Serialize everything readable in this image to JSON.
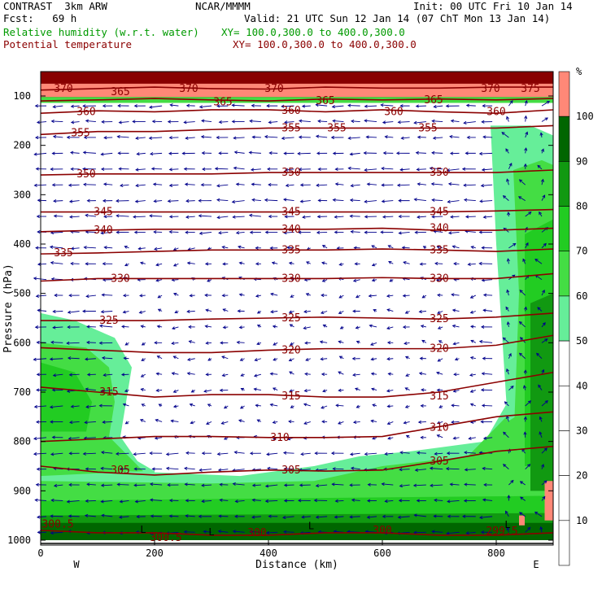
{
  "header": {
    "model": "CONTRAST  3km ARW",
    "center": "NCAR/MMMM",
    "init": "Init: 00 UTC Fri 10 Jan 14",
    "fcst": "Fcst:   69 h",
    "valid": "Valid: 21 UTC Sun 12 Jan 14 (07 ChT Mon 13 Jan 14)",
    "field1": "Relative humidity (w.r.t. water)",
    "field1_xy": "XY= 100.0,300.0 to 400.0,300.0",
    "field2": "Potential temperature",
    "field2_xy": "XY= 100.0,300.0 to 400.0,300.0"
  },
  "colors": {
    "theta_contour": "#8b0000",
    "wind_vector": "#00008b",
    "rh_shades": [
      "#ffffff",
      "#66ee99",
      "#44dd44",
      "#22cc22",
      "#119911",
      "#006600",
      "#ff8877",
      "#880000"
    ]
  },
  "chart_data": {
    "type": "contour",
    "xlabel": "Distance (km)",
    "ylabel": "Pressure (hPa)",
    "xlim": [
      0,
      900
    ],
    "ylim": [
      1000,
      50
    ],
    "x_ticks": [
      0,
      200,
      400,
      600,
      800
    ],
    "y_ticks": [
      100,
      200,
      300,
      400,
      500,
      600,
      700,
      800,
      900,
      1000
    ],
    "x_end_labels": {
      "left": "W",
      "right": "E"
    },
    "colorbar": {
      "unit": "%",
      "levels": [
        10,
        20,
        30,
        40,
        50,
        60,
        70,
        80,
        90,
        100
      ],
      "colors": [
        "#ffffff",
        "#ffffff",
        "#ffffff",
        "#ffffff",
        "#ffffff",
        "#66ee99",
        "#44dd44",
        "#22cc22",
        "#119911",
        "#006600",
        "#ff8877"
      ]
    },
    "theta_contours": [
      {
        "value": 300,
        "p": [
          980,
          985,
          985,
          990,
          990,
          985,
          985,
          990,
          990,
          985
        ]
      },
      {
        "value": 305,
        "p": [
          850,
          862,
          868,
          862,
          858,
          860,
          858,
          840,
          820,
          810
        ]
      },
      {
        "value": 310,
        "p": [
          800,
          795,
          790,
          790,
          792,
          792,
          790,
          770,
          750,
          740
        ]
      },
      {
        "value": 315,
        "p": [
          690,
          700,
          710,
          705,
          705,
          710,
          710,
          700,
          680,
          660
        ]
      },
      {
        "value": 320,
        "p": [
          610,
          615,
          620,
          620,
          615,
          612,
          612,
          612,
          605,
          585
        ]
      },
      {
        "value": 325,
        "p": [
          555,
          555,
          555,
          552,
          550,
          548,
          550,
          552,
          548,
          540
        ]
      },
      {
        "value": 330,
        "p": [
          475,
          470,
          470,
          470,
          470,
          470,
          468,
          470,
          470,
          460
        ]
      },
      {
        "value": 335,
        "p": [
          420,
          418,
          415,
          412,
          412,
          412,
          410,
          412,
          415,
          410
        ]
      },
      {
        "value": 340,
        "p": [
          375,
          372,
          370,
          370,
          370,
          370,
          368,
          372,
          372,
          368
        ]
      },
      {
        "value": 345,
        "p": [
          335,
          335,
          335,
          335,
          335,
          335,
          335,
          335,
          333,
          330
        ]
      },
      {
        "value": 350,
        "p": [
          260,
          258,
          258,
          258,
          255,
          255,
          255,
          255,
          255,
          250
        ]
      },
      {
        "value": 355,
        "p": [
          178,
          172,
          172,
          168,
          165,
          165,
          165,
          165,
          165,
          160
        ]
      },
      {
        "value": 360,
        "p": [
          135,
          130,
          132,
          128,
          128,
          132,
          128,
          132,
          135,
          128
        ]
      },
      {
        "value": 365,
        "p": [
          110,
          108,
          105,
          108,
          110,
          106,
          108,
          106,
          108,
          105
        ]
      },
      {
        "value": 370,
        "p": [
          88,
          85,
          82,
          85,
          86,
          82,
          84,
          84,
          82,
          82
        ]
      }
    ],
    "contour_x": [
      0,
      100,
      200,
      300,
      400,
      500,
      600,
      700,
      800,
      900
    ],
    "contour_labels": [
      {
        "text": "300.5",
        "x": 30,
        "p": 968
      },
      {
        "text": "300.5",
        "x": 220,
        "p": 995
      },
      {
        "text": "300",
        "x": 380,
        "p": 985
      },
      {
        "text": "300",
        "x": 600,
        "p": 980
      },
      {
        "text": "299.5",
        "x": 810,
        "p": 982
      },
      {
        "text": "305",
        "x": 140,
        "p": 858
      },
      {
        "text": "305",
        "x": 440,
        "p": 858
      },
      {
        "text": "305",
        "x": 700,
        "p": 840
      },
      {
        "text": "310",
        "x": 420,
        "p": 792
      },
      {
        "text": "310",
        "x": 700,
        "p": 772
      },
      {
        "text": "315",
        "x": 120,
        "p": 700
      },
      {
        "text": "315",
        "x": 440,
        "p": 708
      },
      {
        "text": "315",
        "x": 700,
        "p": 708
      },
      {
        "text": "320",
        "x": 440,
        "p": 615
      },
      {
        "text": "320",
        "x": 700,
        "p": 612
      },
      {
        "text": "325",
        "x": 120,
        "p": 555
      },
      {
        "text": "325",
        "x": 440,
        "p": 550
      },
      {
        "text": "325",
        "x": 700,
        "p": 552
      },
      {
        "text": "330",
        "x": 140,
        "p": 470
      },
      {
        "text": "330",
        "x": 440,
        "p": 470
      },
      {
        "text": "330",
        "x": 700,
        "p": 470
      },
      {
        "text": "335",
        "x": 40,
        "p": 418
      },
      {
        "text": "335",
        "x": 440,
        "p": 412
      },
      {
        "text": "335",
        "x": 700,
        "p": 412
      },
      {
        "text": "340",
        "x": 110,
        "p": 372
      },
      {
        "text": "340",
        "x": 440,
        "p": 370
      },
      {
        "text": "340",
        "x": 700,
        "p": 368
      },
      {
        "text": "345",
        "x": 110,
        "p": 335
      },
      {
        "text": "345",
        "x": 440,
        "p": 335
      },
      {
        "text": "345",
        "x": 700,
        "p": 335
      },
      {
        "text": "350",
        "x": 80,
        "p": 258
      },
      {
        "text": "350",
        "x": 440,
        "p": 255
      },
      {
        "text": "350",
        "x": 700,
        "p": 255
      },
      {
        "text": "355",
        "x": 70,
        "p": 175
      },
      {
        "text": "355",
        "x": 440,
        "p": 165
      },
      {
        "text": "355",
        "x": 520,
        "p": 165
      },
      {
        "text": "355",
        "x": 680,
        "p": 165
      },
      {
        "text": "360",
        "x": 80,
        "p": 132
      },
      {
        "text": "360",
        "x": 440,
        "p": 130
      },
      {
        "text": "360",
        "x": 620,
        "p": 132
      },
      {
        "text": "360",
        "x": 800,
        "p": 132
      },
      {
        "text": "365",
        "x": 320,
        "p": 112
      },
      {
        "text": "365",
        "x": 500,
        "p": 110
      },
      {
        "text": "365",
        "x": 690,
        "p": 108
      },
      {
        "text": "370",
        "x": 40,
        "p": 85
      },
      {
        "text": "365",
        "x": 140,
        "p": 92
      },
      {
        "text": "370",
        "x": 260,
        "p": 85
      },
      {
        "text": "370",
        "x": 410,
        "p": 85
      },
      {
        "text": "370",
        "x": 790,
        "p": 85
      },
      {
        "text": "375",
        "x": 860,
        "p": 85
      }
    ],
    "low_markers": [
      {
        "text": "L",
        "x": 180,
        "p": 985
      },
      {
        "text": "L",
        "x": 300,
        "p": 990
      },
      {
        "text": "L",
        "x": 475,
        "p": 978
      },
      {
        "text": "L",
        "x": 820,
        "p": 975
      }
    ],
    "rh_regions": [
      {
        "level": "70-80",
        "color": "#44dd44",
        "outline": [
          [
            0,
            960
          ],
          [
            900,
            960
          ],
          [
            900,
            1000
          ],
          [
            0,
            1000
          ]
        ]
      },
      {
        "level": "90-100",
        "color": "#006600",
        "outline": [
          [
            0,
            960
          ],
          [
            900,
            960
          ],
          [
            900,
            985
          ],
          [
            0,
            985
          ]
        ]
      }
    ]
  }
}
